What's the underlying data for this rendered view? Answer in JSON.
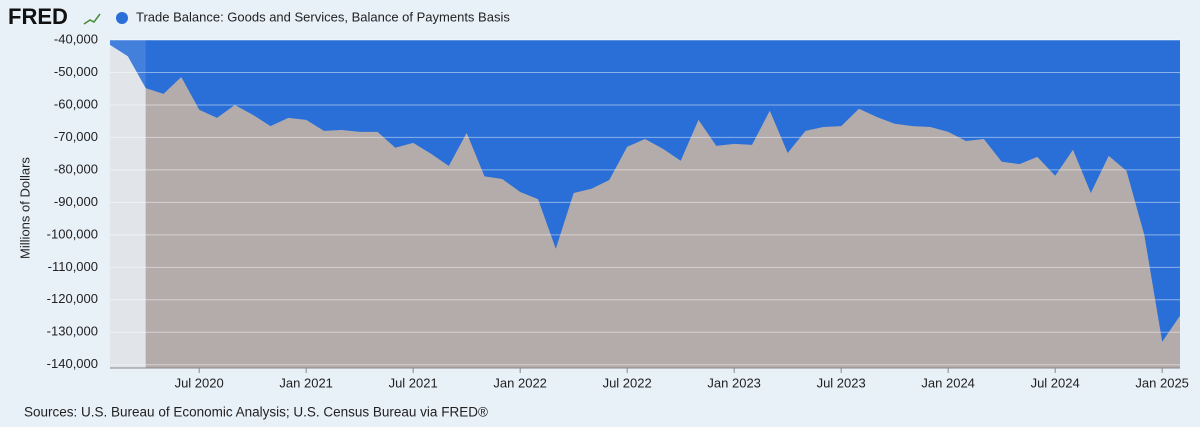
{
  "chart_data": {
    "type": "area",
    "logo": "FRED",
    "y_label": "Millions of Dollars",
    "source": "Sources: U.S. Bureau of Economic Analysis; U.S. Census Bureau via FRED®",
    "recessions": [
      [
        "2020-02",
        "2020-04"
      ]
    ],
    "xlim": [
      "2020-02",
      "2025-02"
    ],
    "xticks": [
      {
        "value": "2020-07",
        "label": "Jul 2020"
      },
      {
        "value": "2021-01",
        "label": "Jan 2021"
      },
      {
        "value": "2021-07",
        "label": "Jul 2021"
      },
      {
        "value": "2022-01",
        "label": "Jan 2022"
      },
      {
        "value": "2022-07",
        "label": "Jul 2022"
      },
      {
        "value": "2023-01",
        "label": "Jan 2023"
      },
      {
        "value": "2023-07",
        "label": "Jul 2023"
      },
      {
        "value": "2024-01",
        "label": "Jan 2024"
      },
      {
        "value": "2024-07",
        "label": "Jul 2024"
      },
      {
        "value": "2025-01",
        "label": "Jan 2025"
      }
    ],
    "ylim": [
      -141000,
      -40000
    ],
    "yticks": [
      {
        "value": -40000,
        "label": "-40,000"
      },
      {
        "value": -50000,
        "label": "-50,000"
      },
      {
        "value": -60000,
        "label": "-60,000"
      },
      {
        "value": -70000,
        "label": "-70,000"
      },
      {
        "value": -80000,
        "label": "-80,000"
      },
      {
        "value": -90000,
        "label": "-90,000"
      },
      {
        "value": -100000,
        "label": "-100,000"
      },
      {
        "value": -110000,
        "label": "-110,000"
      },
      {
        "value": -120000,
        "label": "-120,000"
      },
      {
        "value": -130000,
        "label": "-130,000"
      },
      {
        "value": -140000,
        "label": "-140,000"
      }
    ],
    "grid": true,
    "x": [
      "2020-02",
      "2020-03",
      "2020-04",
      "2020-05",
      "2020-06",
      "2020-07",
      "2020-08",
      "2020-09",
      "2020-10",
      "2020-11",
      "2020-12",
      "2021-01",
      "2021-02",
      "2021-03",
      "2021-04",
      "2021-05",
      "2021-06",
      "2021-07",
      "2021-08",
      "2021-09",
      "2021-10",
      "2021-11",
      "2021-12",
      "2022-01",
      "2022-02",
      "2022-03",
      "2022-04",
      "2022-05",
      "2022-06",
      "2022-07",
      "2022-08",
      "2022-09",
      "2022-10",
      "2022-11",
      "2022-12",
      "2023-01",
      "2023-02",
      "2023-03",
      "2023-04",
      "2023-05",
      "2023-06",
      "2023-07",
      "2023-08",
      "2023-09",
      "2023-10",
      "2023-11",
      "2023-12",
      "2024-01",
      "2024-02",
      "2024-03",
      "2024-04",
      "2024-05",
      "2024-06",
      "2024-07",
      "2024-08",
      "2024-09",
      "2024-10",
      "2024-11",
      "2024-12",
      "2025-01",
      "2025-02"
    ],
    "series": [
      {
        "name": "Trade Balance: Goods and Services, Balance of Payments Basis",
        "color": "#2a6fd8",
        "values": [
          -41500,
          -45000,
          -54800,
          -56600,
          -51400,
          -61500,
          -64000,
          -60000,
          -63000,
          -66500,
          -64000,
          -64600,
          -68000,
          -67700,
          -68300,
          -68300,
          -73200,
          -71700,
          -75000,
          -78800,
          -68600,
          -82000,
          -82800,
          -86800,
          -89000,
          -104300,
          -87100,
          -85800,
          -83100,
          -72900,
          -70500,
          -73500,
          -77200,
          -64600,
          -72600,
          -72000,
          -72300,
          -61800,
          -74800,
          -68000,
          -66800,
          -66500,
          -61200,
          -63700,
          -65800,
          -66500,
          -66800,
          -68300,
          -71100,
          -70500,
          -77500,
          -78200,
          -76000,
          -81800,
          -73800,
          -87100,
          -75700,
          -80300,
          -100000,
          -132900,
          -124900
        ]
      }
    ]
  }
}
